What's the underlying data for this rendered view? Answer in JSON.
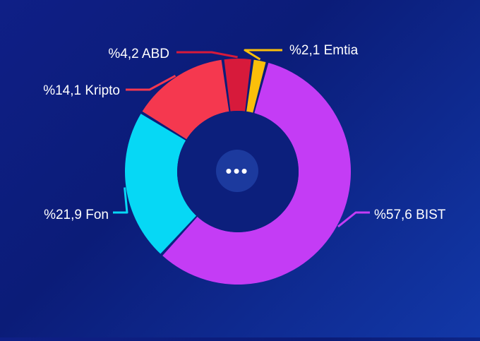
{
  "chart_data": {
    "type": "pie",
    "style": "donut",
    "slices": [
      {
        "label": "%57,6 BIST",
        "value": 57.6,
        "color": "#c43cf5"
      },
      {
        "label": "%21,9 Fon",
        "value": 21.9,
        "color": "#06d8f5"
      },
      {
        "label": "%14,1 Kripto",
        "value": 14.1,
        "color": "#f5384f"
      },
      {
        "label": "%4,2 ABD",
        "value": 4.2,
        "color": "#d71a3b"
      },
      {
        "label": "%2,1 Emtia",
        "value": 2.1,
        "color": "#fbbf0a"
      }
    ],
    "center_button_label": "•••",
    "background_color": "#0d1d80",
    "center_color": "#0c1f7c"
  }
}
